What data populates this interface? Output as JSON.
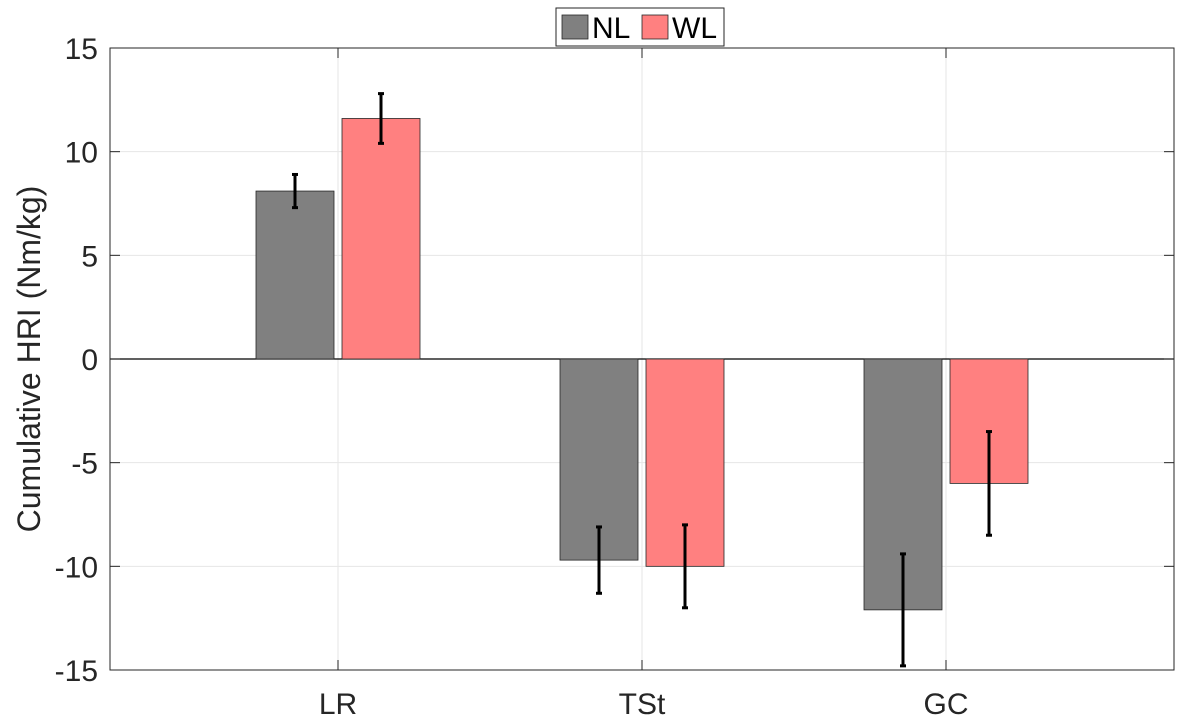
{
  "chart_data": {
    "type": "bar",
    "categories": [
      "LR",
      "TSt",
      "GC"
    ],
    "series": [
      {
        "name": "NL",
        "color": "#808080",
        "values": [
          8.1,
          -9.7,
          -12.1
        ],
        "error": [
          0.8,
          1.6,
          2.7
        ]
      },
      {
        "name": "WL",
        "color": "#ff8080",
        "values": [
          11.6,
          -10.0,
          -6.0
        ],
        "error": [
          1.2,
          2.0,
          2.5
        ]
      }
    ],
    "title": "",
    "xlabel": "",
    "ylabel": "Cumulative HRI (Nm/kg)",
    "ylim": [
      -15,
      15
    ],
    "yticks": [
      15,
      10,
      5,
      0,
      -5,
      -10,
      -15
    ],
    "ytick_labels": [
      "15",
      "10",
      "5",
      "0",
      "-5",
      "-10",
      "-15"
    ],
    "grid": true,
    "legend": "top-center"
  }
}
